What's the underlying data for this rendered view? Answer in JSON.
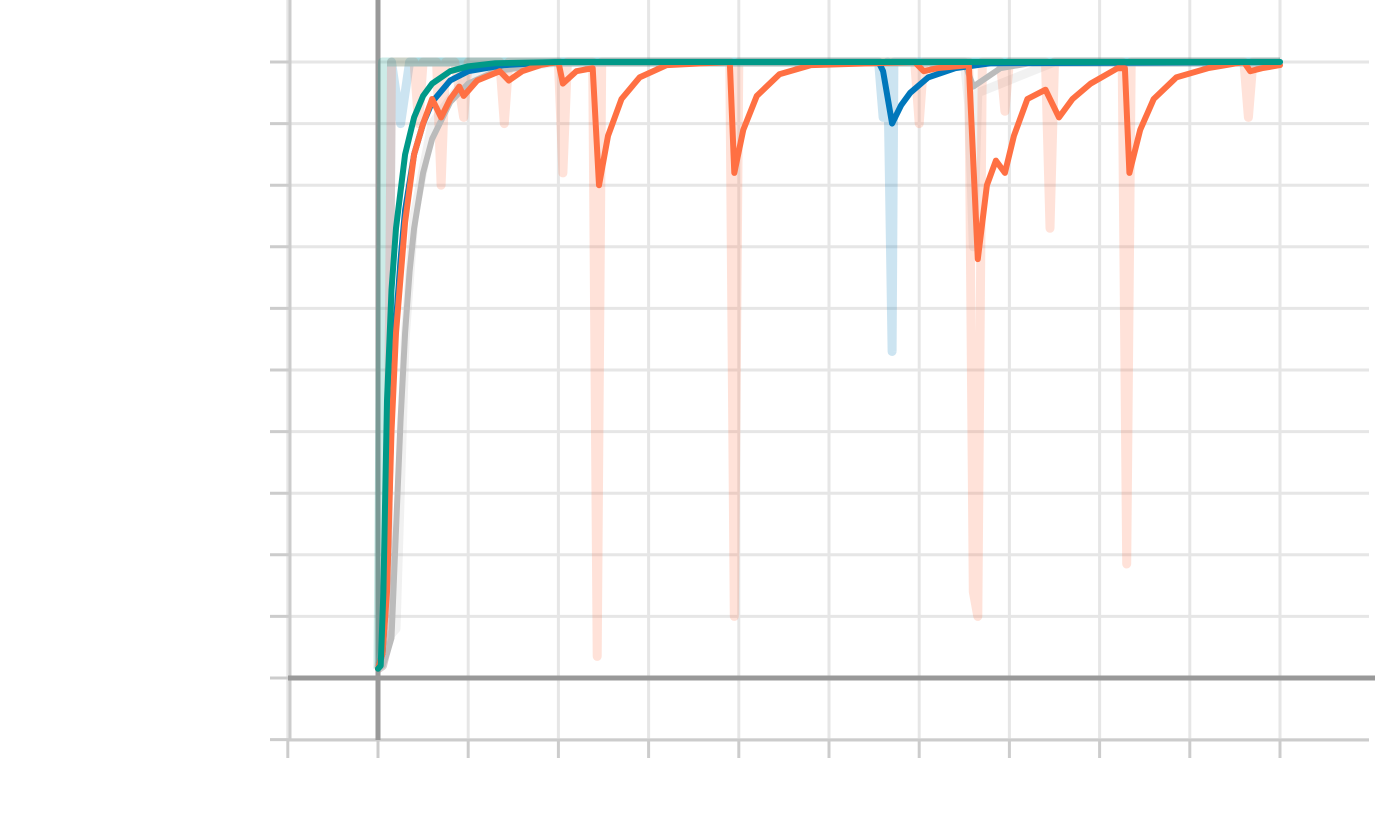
{
  "chart_data": {
    "type": "line",
    "title": "",
    "xlabel": "",
    "ylabel": "",
    "grid": true,
    "xlim": [
      -1,
      11
    ],
    "ylim": [
      -0.1,
      1.0
    ],
    "x_major_ticks": [
      -1,
      0,
      1,
      2,
      3,
      4,
      5,
      6,
      7,
      8,
      9,
      10,
      11
    ],
    "y_major_ticks": [
      -0.1,
      0.0,
      0.1,
      0.2,
      0.3,
      0.4,
      0.5,
      0.6,
      0.7,
      0.8,
      0.9,
      1.0
    ],
    "colors": {
      "orange": "#ff7043",
      "blue": "#0077bb",
      "gray": "#bbbbbb",
      "teal": "#009988",
      "axis": "#999999",
      "grid": "#e6e6e6"
    },
    "series": [
      {
        "id": "gray",
        "color": "#bbbbbb",
        "raw": [
          [
            0,
            0.015
          ],
          [
            0.08,
            0.06
          ],
          [
            0.2,
            0.08
          ],
          [
            0.3,
            0.55
          ],
          [
            0.4,
            0.75
          ],
          [
            0.6,
            0.9
          ],
          [
            1.0,
            0.98
          ],
          [
            2,
            1.0
          ],
          [
            6.5,
            1.0
          ],
          [
            6.55,
            0.93
          ],
          [
            6.6,
            0.7
          ],
          [
            6.65,
            0.95
          ],
          [
            7.5,
            1.0
          ],
          [
            10,
            1.0
          ]
        ],
        "smoothed": [
          [
            0,
            0.015
          ],
          [
            0.05,
            0.02
          ],
          [
            0.1,
            0.04
          ],
          [
            0.15,
            0.065
          ],
          [
            0.25,
            0.42
          ],
          [
            0.3,
            0.56
          ],
          [
            0.35,
            0.66
          ],
          [
            0.4,
            0.73
          ],
          [
            0.5,
            0.82
          ],
          [
            0.6,
            0.875
          ],
          [
            0.8,
            0.935
          ],
          [
            1.0,
            0.965
          ],
          [
            1.3,
            0.985
          ],
          [
            2,
            1.0
          ],
          [
            6.5,
            1.0
          ],
          [
            6.6,
            0.96
          ],
          [
            6.7,
            0.97
          ],
          [
            6.9,
            0.99
          ],
          [
            7.3,
            1.0
          ],
          [
            10,
            1.0
          ]
        ]
      },
      {
        "id": "blue",
        "color": "#0077bb",
        "raw": [
          [
            0,
            0.015
          ],
          [
            0.05,
            0.02
          ],
          [
            0.1,
            0.05
          ],
          [
            0.15,
            1.0
          ],
          [
            0.25,
            0.9
          ],
          [
            0.35,
            1.0
          ],
          [
            5.55,
            1.0
          ],
          [
            5.6,
            0.91
          ],
          [
            5.65,
            1.0
          ],
          [
            5.7,
            0.53
          ],
          [
            5.72,
            1.0
          ],
          [
            10,
            1.0
          ]
        ],
        "smoothed": [
          [
            0,
            0.015
          ],
          [
            0.05,
            0.04
          ],
          [
            0.1,
            0.15
          ],
          [
            0.15,
            0.42
          ],
          [
            0.2,
            0.58
          ],
          [
            0.25,
            0.68
          ],
          [
            0.3,
            0.76
          ],
          [
            0.4,
            0.85
          ],
          [
            0.5,
            0.9
          ],
          [
            0.6,
            0.935
          ],
          [
            0.8,
            0.97
          ],
          [
            1.0,
            0.985
          ],
          [
            1.4,
            0.995
          ],
          [
            2,
            1.0
          ],
          [
            5.55,
            1.0
          ],
          [
            5.6,
            0.985
          ],
          [
            5.7,
            0.9
          ],
          [
            5.8,
            0.93
          ],
          [
            5.9,
            0.95
          ],
          [
            6.1,
            0.975
          ],
          [
            6.4,
            0.99
          ],
          [
            6.8,
            0.998
          ],
          [
            10,
            1.0
          ]
        ]
      },
      {
        "id": "orange",
        "color": "#ff7043",
        "raw": [
          [
            0,
            0.015
          ],
          [
            0.05,
            0.02
          ],
          [
            0.1,
            0.05
          ],
          [
            0.15,
            1.0
          ],
          [
            0.4,
            1.0
          ],
          [
            0.45,
            0.9
          ],
          [
            0.5,
            1.0
          ],
          [
            0.65,
            1.0
          ],
          [
            0.7,
            0.8
          ],
          [
            0.75,
            1.0
          ],
          [
            0.85,
            1.0
          ],
          [
            0.95,
            0.91
          ],
          [
            1.0,
            1.0
          ],
          [
            1.35,
            1.0
          ],
          [
            1.4,
            0.9
          ],
          [
            1.45,
            1.0
          ],
          [
            2,
            1.0
          ],
          [
            2.05,
            0.82
          ],
          [
            2.1,
            1.0
          ],
          [
            2.38,
            1.0
          ],
          [
            2.43,
            0.035
          ],
          [
            2.48,
            1.0
          ],
          [
            3.9,
            1.0
          ],
          [
            3.95,
            0.1
          ],
          [
            4.0,
            1.0
          ],
          [
            5.95,
            1.0
          ],
          [
            6.0,
            0.9
          ],
          [
            6.05,
            1.0
          ],
          [
            6.55,
            1.0
          ],
          [
            6.6,
            0.14
          ],
          [
            6.65,
            0.1
          ],
          [
            6.7,
            1.0
          ],
          [
            6.9,
            1.0
          ],
          [
            6.95,
            0.92
          ],
          [
            7.0,
            1.0
          ],
          [
            7.4,
            1.0
          ],
          [
            7.45,
            0.73
          ],
          [
            7.5,
            1.0
          ],
          [
            8.25,
            1.0
          ],
          [
            8.3,
            0.185
          ],
          [
            8.35,
            1.0
          ],
          [
            9.6,
            1.0
          ],
          [
            9.65,
            0.91
          ],
          [
            9.7,
            1.0
          ],
          [
            10,
            1.0
          ]
        ],
        "smoothed": [
          [
            0,
            0.015
          ],
          [
            0.05,
            0.04
          ],
          [
            0.1,
            0.14
          ],
          [
            0.15,
            0.4
          ],
          [
            0.2,
            0.56
          ],
          [
            0.3,
            0.74
          ],
          [
            0.4,
            0.85
          ],
          [
            0.5,
            0.9
          ],
          [
            0.6,
            0.94
          ],
          [
            0.7,
            0.91
          ],
          [
            0.8,
            0.94
          ],
          [
            0.9,
            0.96
          ],
          [
            0.95,
            0.945
          ],
          [
            1.1,
            0.97
          ],
          [
            1.35,
            0.985
          ],
          [
            1.45,
            0.97
          ],
          [
            1.6,
            0.985
          ],
          [
            1.8,
            0.995
          ],
          [
            2.0,
            1.0
          ],
          [
            2.05,
            0.965
          ],
          [
            2.2,
            0.985
          ],
          [
            2.38,
            0.99
          ],
          [
            2.45,
            0.8
          ],
          [
            2.55,
            0.88
          ],
          [
            2.7,
            0.94
          ],
          [
            2.9,
            0.975
          ],
          [
            3.2,
            0.995
          ],
          [
            3.9,
            1.0
          ],
          [
            3.95,
            0.82
          ],
          [
            4.05,
            0.89
          ],
          [
            4.2,
            0.945
          ],
          [
            4.45,
            0.98
          ],
          [
            4.8,
            0.995
          ],
          [
            5.95,
            1.0
          ],
          [
            6.05,
            0.985
          ],
          [
            6.2,
            0.99
          ],
          [
            6.55,
            0.995
          ],
          [
            6.65,
            0.68
          ],
          [
            6.75,
            0.8
          ],
          [
            6.85,
            0.84
          ],
          [
            6.95,
            0.82
          ],
          [
            7.05,
            0.88
          ],
          [
            7.2,
            0.94
          ],
          [
            7.4,
            0.955
          ],
          [
            7.45,
            0.94
          ],
          [
            7.55,
            0.91
          ],
          [
            7.7,
            0.94
          ],
          [
            7.9,
            0.965
          ],
          [
            8.2,
            0.99
          ],
          [
            8.28,
            0.99
          ],
          [
            8.33,
            0.82
          ],
          [
            8.45,
            0.89
          ],
          [
            8.6,
            0.94
          ],
          [
            8.85,
            0.975
          ],
          [
            9.2,
            0.99
          ],
          [
            9.6,
            1.0
          ],
          [
            9.67,
            0.985
          ],
          [
            9.8,
            0.99
          ],
          [
            10,
            0.995
          ]
        ]
      },
      {
        "id": "teal",
        "color": "#009988",
        "raw": [
          [
            0,
            0.015
          ],
          [
            0.05,
            1.0
          ],
          [
            10,
            1.0
          ]
        ],
        "smoothed": [
          [
            0,
            0.015
          ],
          [
            0.03,
            0.02
          ],
          [
            0.06,
            0.14
          ],
          [
            0.1,
            0.45
          ],
          [
            0.15,
            0.63
          ],
          [
            0.2,
            0.73
          ],
          [
            0.3,
            0.85
          ],
          [
            0.4,
            0.91
          ],
          [
            0.5,
            0.945
          ],
          [
            0.6,
            0.965
          ],
          [
            0.8,
            0.985
          ],
          [
            1.0,
            0.993
          ],
          [
            1.3,
            0.998
          ],
          [
            2,
            1.0
          ],
          [
            10,
            1.0
          ]
        ]
      }
    ]
  }
}
